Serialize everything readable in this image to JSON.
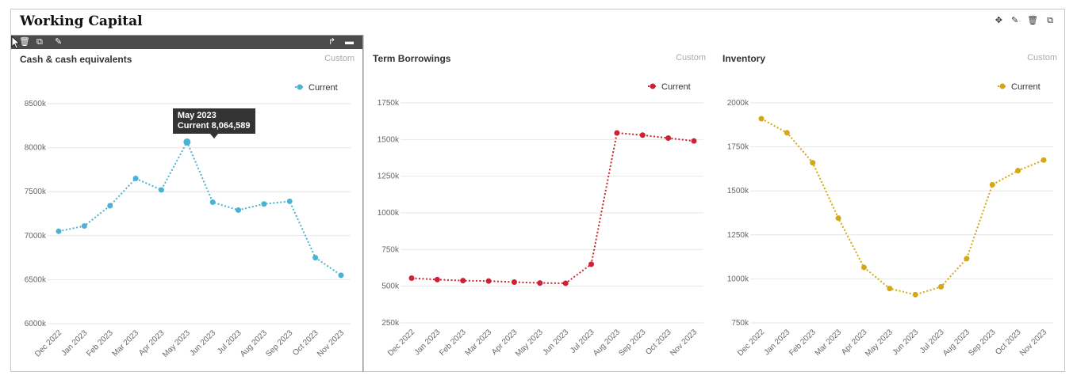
{
  "dashboard": {
    "title": "Working Capital",
    "toolbar_icons": [
      "move-icon",
      "edit-icon",
      "trash-icon",
      "copy-icon"
    ]
  },
  "chart_data": [
    {
      "type": "line",
      "title": "Cash & cash equivalents",
      "badge": "Custom",
      "color": "#4ab3d4",
      "categories": [
        "Dec 2022",
        "Jan 2023",
        "Feb 2023",
        "Mar 2023",
        "Apr 2023",
        "May 2023",
        "Jun 2023",
        "Jul 2023",
        "Aug 2023",
        "Sep 2023",
        "Oct 2023",
        "Nov 2023"
      ],
      "series": [
        {
          "name": "Current",
          "values": [
            7050,
            7110,
            7340,
            7650,
            7520,
            8064.589,
            7380,
            7290,
            7360,
            7390,
            6750,
            6550
          ]
        }
      ],
      "ylim": [
        6000,
        8500
      ],
      "yticks": [
        6000,
        6500,
        7000,
        7500,
        8000,
        8500
      ],
      "ytick_labels": [
        "6000k",
        "6500k",
        "7000k",
        "7500k",
        "8000k",
        "8500k"
      ],
      "tooltip": {
        "index": 5,
        "line1": "May 2023",
        "line2": "Current 8,064,589"
      },
      "legend": "top-right",
      "grid": true
    },
    {
      "type": "line",
      "title": "Term Borrowings",
      "badge": "Custom",
      "color": "#cc2233",
      "categories": [
        "Dec 2022",
        "Jan 2023",
        "Feb 2023",
        "Mar 2023",
        "Apr 2023",
        "May 2023",
        "Jun 2023",
        "Jul 2023",
        "Aug 2023",
        "Sep 2023",
        "Oct 2023",
        "Nov 2023"
      ],
      "series": [
        {
          "name": "Current",
          "values": [
            555,
            545,
            538,
            535,
            528,
            522,
            520,
            650,
            1545,
            1530,
            1510,
            1490
          ]
        }
      ],
      "ylim": [
        250,
        1750
      ],
      "yticks": [
        250,
        500,
        750,
        1000,
        1250,
        1500,
        1750
      ],
      "ytick_labels": [
        "250k",
        "500k",
        "750k",
        "1000k",
        "1250k",
        "1500k",
        "1750k"
      ],
      "legend": "top-right",
      "grid": true
    },
    {
      "type": "line",
      "title": "Inventory",
      "badge": "Custom",
      "color": "#d4a814",
      "categories": [
        "Dec 2022",
        "Jan 2023",
        "Feb 2023",
        "Mar 2023",
        "Apr 2023",
        "May 2023",
        "Jun 2023",
        "Jul 2023",
        "Aug 2023",
        "Sep 2023",
        "Oct 2023",
        "Nov 2023"
      ],
      "series": [
        {
          "name": "Current",
          "values": [
            1910,
            1830,
            1660,
            1345,
            1065,
            945,
            910,
            955,
            1115,
            1535,
            1615,
            1675
          ]
        }
      ],
      "ylim": [
        750,
        2000
      ],
      "yticks": [
        750,
        1000,
        1250,
        1500,
        1750,
        2000
      ],
      "ytick_labels": [
        "750k",
        "1000k",
        "1250k",
        "1500k",
        "1750k",
        "2000k"
      ],
      "legend": "top-right",
      "grid": true
    }
  ]
}
